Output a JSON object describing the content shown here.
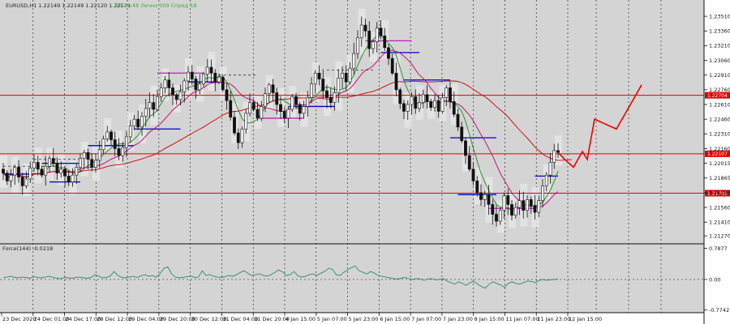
{
  "header": {
    "symbol_line": "EURUSD,H1  1.22149 1.22149 1.22120 1.22121",
    "timer": "06:20:48 Лечно 309 Спред 18"
  },
  "indicator": {
    "label": "Force(144) -0.0218"
  },
  "chart_data": [
    {
      "type": "line",
      "title": "EURUSD,H1  1.22149 1.22149 1.22120 1.22121",
      "price_ticks": [
        1.2351,
        1.2336,
        1.2321,
        1.2306,
        1.2291,
        1.2276,
        1.2261,
        1.2246,
        1.2231,
        1.2216,
        1.2201,
        1.2186,
        1.2171,
        1.2156,
        1.2141,
        1.2127
      ],
      "price_tick_labels": [
        "1.23510",
        "1.23360",
        "1.23210",
        "1.23060",
        "1.22910",
        "1.22760",
        "1.22610",
        "1.22460",
        "1.22310",
        "1.22160",
        "1.22015",
        "1.21865",
        "1.21705",
        "1.21560",
        "1.21410",
        "1.21270"
      ],
      "ylim": [
        1.2123,
        1.2361
      ],
      "time_labels": [
        "23 Dec 2020",
        "24 Dec 01:00",
        "24 Dec 17:00",
        "28 Dec 12:00",
        "29 Dec 04:00",
        "29 Dec 20:00",
        "30 Dec 12:00",
        "31 Dec 04:00",
        "31 Dec 20:00",
        "4 Jan 15:00",
        "5 Jan 07:00",
        "5 Jan 23:00",
        "6 Jan 15:00",
        "7 Jan 07:00",
        "7 Jan 23:00",
        "8 Jan 15:00",
        "11 Jan 07:00",
        "11 Jan 23:00",
        "12 Jan 15:00"
      ],
      "horizontal_levels": [
        {
          "price": 1.22704,
          "label": "1.22704",
          "color": "#e00000"
        },
        {
          "price": 1.22107,
          "label": "1.22107",
          "color": "#e00000"
        },
        {
          "price": 1.21705,
          "label": "1.21705",
          "color": "#e00000"
        }
      ],
      "close": [
        1.2191,
        1.2183,
        1.2189,
        1.2197,
        1.2187,
        1.2178,
        1.2185,
        1.2196,
        1.2202,
        1.2195,
        1.2189,
        1.2198,
        1.2206,
        1.2201,
        1.2191,
        1.2195,
        1.2188,
        1.2182,
        1.2189,
        1.2197,
        1.2206,
        1.2212,
        1.2205,
        1.2197,
        1.2204,
        1.2215,
        1.2226,
        1.2233,
        1.2225,
        1.2216,
        1.2209,
        1.2217,
        1.2228,
        1.2239,
        1.2246,
        1.2238,
        1.2249,
        1.2257,
        1.2263,
        1.2256,
        1.2269,
        1.2278,
        1.2286,
        1.2278,
        1.2271,
        1.2266,
        1.2274,
        1.2285,
        1.2294,
        1.2287,
        1.2276,
        1.2282,
        1.2292,
        1.2299,
        1.2293,
        1.2284,
        1.2289,
        1.2276,
        1.2265,
        1.2248,
        1.2232,
        1.2222,
        1.2236,
        1.2252,
        1.2263,
        1.2256,
        1.2247,
        1.2259,
        1.2272,
        1.2281,
        1.2273,
        1.2261,
        1.2254,
        1.2247,
        1.2256,
        1.2269,
        1.2261,
        1.2252,
        1.2259,
        1.2268,
        1.2282,
        1.2293,
        1.2287,
        1.2275,
        1.2268,
        1.2263,
        1.2273,
        1.2288,
        1.2293,
        1.2284,
        1.2298,
        1.2313,
        1.2329,
        1.2342,
        1.2336,
        1.2318,
        1.2325,
        1.2339,
        1.2331,
        1.2319,
        1.2308,
        1.2293,
        1.2276,
        1.2262,
        1.2254,
        1.2261,
        1.2269,
        1.2257,
        1.2263,
        1.2271,
        1.2264,
        1.2258,
        1.2265,
        1.2254,
        1.2268,
        1.2278,
        1.2264,
        1.2251,
        1.2238,
        1.2224,
        1.2209,
        1.2195,
        1.2183,
        1.2171,
        1.2164,
        1.2169,
        1.2159,
        1.2149,
        1.2142,
        1.2153,
        1.2168,
        1.2159,
        1.2148,
        1.2156,
        1.2163,
        1.2153,
        1.2164,
        1.2158,
        1.2151,
        1.2163,
        1.2178,
        1.2189,
        1.2202,
        1.2214,
        1.2212
      ],
      "forecast_path": [
        1.2212,
        1.2206,
        1.2197,
        1.2213,
        1.2205,
        1.2246,
        1.2236,
        1.2281
      ],
      "moving_averages": [
        {
          "color": "#1b8a1b"
        },
        {
          "color": "#c00070"
        },
        {
          "color": "#cc0000"
        }
      ]
    },
    {
      "type": "line",
      "title": "Force(144) -0.0218",
      "ylim": [
        -0.8,
        0.82
      ],
      "tick_labels": [
        "0.7877",
        "0.00",
        "-0.7742"
      ],
      "ticks": [
        0.7877,
        0.0,
        -0.7742
      ],
      "values": [
        0.05,
        0.06,
        0.08,
        0.05,
        0.04,
        0.06,
        0.05,
        0.03,
        0.07,
        0.05,
        0.04,
        0.06,
        0.08,
        0.05,
        0.03,
        0.02,
        0.05,
        0.04,
        0.03,
        0.05,
        0.06,
        0.04,
        0.03,
        0.05,
        0.12,
        0.08,
        0.04,
        0.05,
        0.09,
        0.2,
        0.1,
        0.05,
        0.04,
        0.06,
        0.08,
        0.05,
        0.09,
        0.12,
        0.08,
        0.1,
        0.06,
        0.15,
        0.28,
        0.32,
        0.14,
        0.06,
        0.04,
        0.05,
        0.07,
        0.09,
        0.05,
        0.06,
        0.22,
        0.1,
        0.12,
        0.08,
        0.06,
        0.05,
        0.07,
        0.1,
        0.08,
        0.12,
        0.18,
        0.22,
        0.15,
        0.1,
        0.12,
        0.14,
        0.1,
        0.08,
        0.12,
        0.18,
        0.24,
        0.19,
        0.1,
        0.12,
        0.2,
        0.09,
        0.06,
        0.08,
        0.12,
        0.14,
        0.1,
        0.16,
        0.2,
        0.28,
        0.26,
        0.12,
        0.1,
        0.18,
        0.24,
        0.3,
        0.34,
        0.22,
        0.18,
        0.14,
        0.2,
        0.16,
        0.1,
        0.08,
        0.06,
        0.04,
        0.02,
        0.01,
        0.03,
        0.05,
        0.02,
        0.0,
        0.02,
        0.01,
        -0.02,
        0.01,
        0.02,
        -0.01,
        0.0,
        0.02,
        -0.04,
        -0.08,
        -0.12,
        -0.06,
        -0.1,
        -0.15,
        -0.08,
        -0.05,
        -0.12,
        -0.18,
        -0.22,
        -0.12,
        -0.06,
        -0.1,
        -0.14,
        -0.2,
        -0.1,
        -0.06,
        -0.1,
        -0.12,
        -0.08,
        -0.04,
        -0.05,
        -0.08,
        -0.03,
        0.0,
        -0.02,
        -0.01,
        0.0,
        0.01
      ]
    }
  ]
}
